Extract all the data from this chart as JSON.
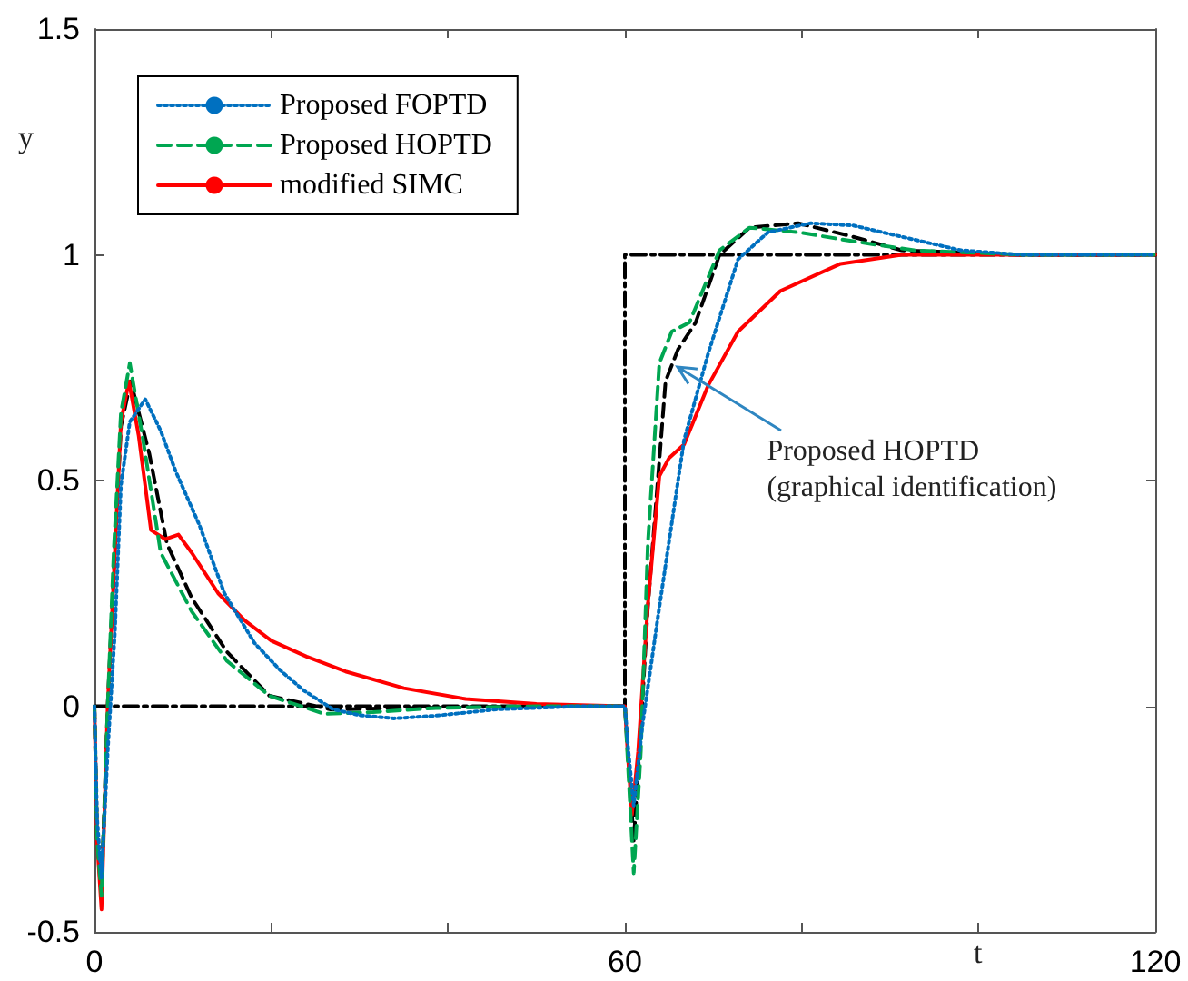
{
  "chart_data": {
    "type": "line",
    "xlabel": "t",
    "ylabel": "y",
    "xlim": [
      0,
      120
    ],
    "xticks": [
      0,
      {
        "value": 20,
        "label": null
      },
      {
        "value": 40,
        "label": null
      },
      60,
      {
        "value": 80,
        "label": null
      },
      {
        "value": 100,
        "label": null
      },
      120
    ],
    "ylim": [
      -0.5,
      1.5
    ],
    "yticks": [
      -0.5,
      0,
      0.5,
      1,
      1.5
    ],
    "grid": false,
    "legend": "top left",
    "marker": "none",
    "annotations": [
      {
        "text": "Proposed HOPTD\n(graphical identification)",
        "x": 66,
        "y": 0.75
      }
    ],
    "series": [
      {
        "name": "Proposed FOPTD",
        "color": "#0070c0",
        "line_style": "dotted",
        "x": [
          0,
          0.3,
          0.8,
          1.5,
          2.3,
          3,
          4,
          5.75,
          7.5,
          9.2,
          11.9,
          14.7,
          18.1,
          21,
          23.6,
          27,
          30,
          33.9,
          38.6,
          45.5,
          55,
          60,
          60.4,
          61,
          62,
          63.9,
          66.7,
          69.4,
          72.8,
          76.2,
          81,
          85.8,
          91.3,
          98,
          105,
          120
        ],
        "values": [
          0,
          -0.25,
          -0.38,
          -0.1,
          0.16,
          0.49,
          0.63,
          0.68,
          0.61,
          0.52,
          0.4,
          0.25,
          0.14,
          0.08,
          0.036,
          -0.007,
          -0.02,
          -0.027,
          -0.021,
          -0.007,
          0,
          0,
          -0.1,
          -0.22,
          -0.04,
          0.22,
          0.59,
          0.78,
          0.99,
          1.05,
          1.07,
          1.065,
          1.04,
          1.01,
          1.0,
          1.0
        ]
      },
      {
        "name": "Proposed HOPTD",
        "color": "#00a651",
        "line_style": "dashed",
        "x": [
          0,
          0.3,
          0.8,
          1.5,
          2.2,
          3,
          4,
          5.5,
          7.5,
          11,
          15,
          19.8,
          26,
          31.5,
          38.6,
          50,
          60,
          60.4,
          61,
          61.8,
          62.6,
          63.9,
          65.3,
          67.3,
          70.7,
          74.1,
          79.6,
          85.8,
          92.7,
          105,
          120
        ],
        "values": [
          0,
          -0.3,
          -0.42,
          0,
          0.35,
          0.65,
          0.76,
          0.59,
          0.34,
          0.21,
          0.1,
          0.023,
          -0.017,
          -0.013,
          -0.004,
          0,
          0,
          -0.15,
          -0.37,
          -0.1,
          0.36,
          0.76,
          0.83,
          0.85,
          1.01,
          1.06,
          1.05,
          1.03,
          1.01,
          1.0,
          1.0
        ]
      },
      {
        "name": "modified SIMC",
        "color": "#ff0000",
        "line_style": "solid",
        "x": [
          0,
          0.3,
          0.8,
          1.5,
          2.2,
          3,
          3.9,
          5,
          6.4,
          8,
          9.5,
          11,
          14,
          17,
          20,
          24,
          28.4,
          35,
          42,
          50,
          60,
          60.3,
          60.8,
          61.5,
          62.6,
          63.9,
          65,
          66.7,
          69.4,
          72.8,
          77.6,
          84.4,
          91.3,
          100,
          120
        ],
        "values": [
          0,
          -0.3,
          -0.45,
          0,
          0.29,
          0.63,
          0.72,
          0.6,
          0.39,
          0.37,
          0.38,
          0.34,
          0.25,
          0.19,
          0.145,
          0.11,
          0.077,
          0.04,
          0.016,
          0.005,
          0,
          -0.1,
          -0.24,
          -0.1,
          0.225,
          0.51,
          0.55,
          0.58,
          0.71,
          0.83,
          0.92,
          0.98,
          1.0,
          1.0,
          1.0
        ]
      },
      {
        "color": "#000000",
        "line_style": "dashed",
        "x": [
          0,
          0.3,
          0.8,
          1.5,
          2.2,
          3,
          4.1,
          6.2,
          8.2,
          11,
          15,
          19.8,
          26.7,
          35,
          50,
          60,
          60.4,
          61,
          61.8,
          62.6,
          64.6,
          66,
          68,
          70.7,
          74.1,
          79.6,
          85.8,
          91.3,
          105,
          120
        ],
        "values": [
          0,
          -0.3,
          -0.4,
          0,
          0.3,
          0.62,
          0.72,
          0.56,
          0.36,
          0.24,
          0.12,
          0.023,
          -0.007,
          -0.004,
          0,
          0,
          -0.12,
          -0.3,
          -0.05,
          0.22,
          0.72,
          0.79,
          0.85,
          1.0,
          1.06,
          1.07,
          1.04,
          1.01,
          1.0,
          1.0
        ]
      },
      {
        "color": "#000000",
        "line_style": "dashdot",
        "x": [
          0,
          60,
          60,
          120
        ],
        "values": [
          0,
          0,
          1,
          1
        ]
      }
    ]
  }
}
